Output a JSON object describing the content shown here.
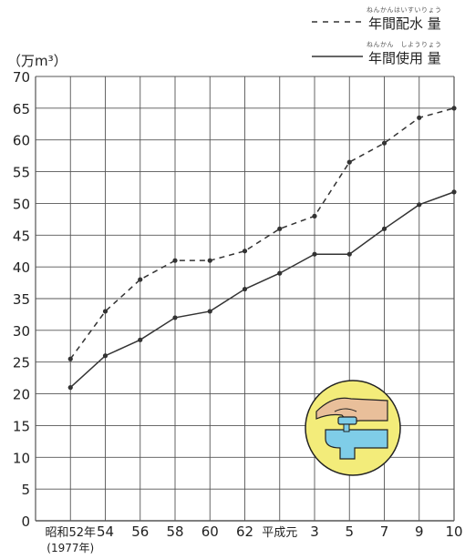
{
  "unit": "（万m³）",
  "legend": [
    {
      "ruby": "ねんかんはいすいりょう",
      "label": "年間配水 量",
      "style": "dashed"
    },
    {
      "ruby": "ねんかん　しようりょう",
      "label": "年間使用 量",
      "style": "solid"
    }
  ],
  "chart_data": {
    "type": "line",
    "categories": [
      "昭和52年\n(1977年)",
      "54",
      "56",
      "58",
      "60",
      "62",
      "平成元",
      "3",
      "5",
      "7",
      "9",
      "10"
    ],
    "ylim": [
      0,
      70
    ],
    "yticks": [
      0,
      5,
      10,
      15,
      20,
      25,
      30,
      35,
      40,
      45,
      50,
      55,
      60,
      65,
      70
    ],
    "grid": true,
    "legend_position": "top-right",
    "series": [
      {
        "name": "年間配水 量",
        "style": "dashed",
        "values": [
          25.5,
          33,
          38,
          41,
          41,
          42.5,
          46,
          48,
          56.5,
          59.5,
          63.5,
          65
        ]
      },
      {
        "name": "年間使用 量",
        "style": "solid",
        "values": [
          21,
          26,
          28.5,
          32,
          33,
          36.5,
          39,
          42,
          42,
          46,
          49.8,
          51.8
        ]
      }
    ]
  },
  "colors": {
    "grid": "#555555",
    "line": "#333333",
    "badge_fill": "#f3ec7a",
    "badge_stroke": "#222222",
    "faucet": "#7fcde8",
    "hand": "#e9bf9a"
  },
  "icon": "faucet-hand-icon"
}
